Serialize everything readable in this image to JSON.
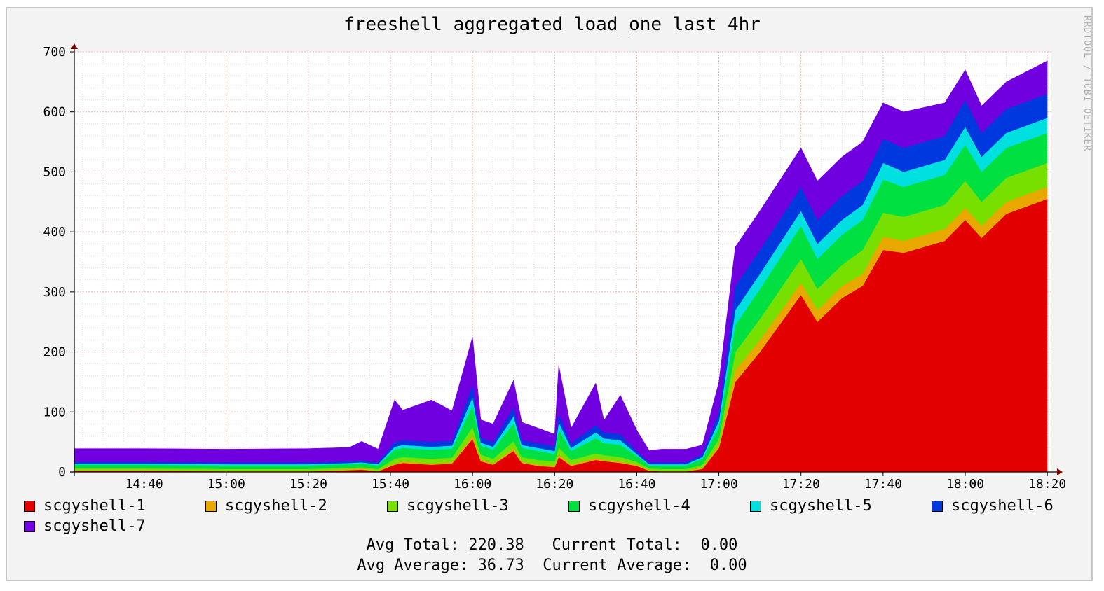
{
  "watermark": "RRDTOOL / TOBI OETIKER",
  "chart_data": {
    "type": "area",
    "stacked": true,
    "title": "freeshell aggregated load_one last 4hr",
    "xlabel": "",
    "ylabel": "",
    "ylim": [
      0,
      700
    ],
    "yticks": [
      "0",
      "100",
      "200",
      "300",
      "400",
      "500",
      "600",
      "700"
    ],
    "xlim": [
      "14:23",
      "18:21"
    ],
    "xticks": [
      "14:40",
      "15:00",
      "15:20",
      "15:40",
      "16:00",
      "16:20",
      "16:40",
      "17:00",
      "17:20",
      "17:40",
      "18:00",
      "18:20"
    ],
    "grid": true,
    "legend_position": "bottom",
    "x": [
      "14:23",
      "14:40",
      "15:00",
      "15:20",
      "15:30",
      "15:33",
      "15:37",
      "15:41",
      "15:43",
      "15:50",
      "15:55",
      "16:00",
      "16:02",
      "16:05",
      "16:10",
      "16:12",
      "16:16",
      "16:20",
      "16:21",
      "16:24",
      "16:30",
      "16:32",
      "16:36",
      "16:40",
      "16:43",
      "16:46",
      "16:52",
      "16:56",
      "17:00",
      "17:04",
      "17:10",
      "17:20",
      "17:24",
      "17:30",
      "17:35",
      "17:40",
      "17:45",
      "17:55",
      "18:00",
      "18:04",
      "18:10",
      "18:20"
    ],
    "series": [
      {
        "name": "scgyshell-1",
        "color": "#e30000",
        "values": [
          2,
          2,
          1,
          1,
          3,
          4,
          1,
          12,
          15,
          12,
          14,
          55,
          18,
          12,
          35,
          15,
          10,
          8,
          25,
          10,
          20,
          18,
          15,
          10,
          2,
          1,
          1,
          5,
          40,
          150,
          200,
          295,
          250,
          290,
          310,
          370,
          365,
          385,
          420,
          390,
          430,
          455
        ]
      },
      {
        "name": "scgyshell-2",
        "color": "#e8a800",
        "values": [
          1,
          1,
          1,
          1,
          1,
          1,
          1,
          2,
          2,
          2,
          2,
          5,
          3,
          2,
          4,
          2,
          2,
          2,
          4,
          2,
          3,
          2,
          2,
          2,
          1,
          1,
          1,
          2,
          5,
          20,
          20,
          20,
          20,
          20,
          20,
          22,
          20,
          20,
          20,
          20,
          20,
          20
        ]
      },
      {
        "name": "scgyshell-3",
        "color": "#78e000",
        "values": [
          3,
          3,
          3,
          3,
          3,
          3,
          3,
          8,
          8,
          8,
          8,
          15,
          8,
          8,
          12,
          8,
          8,
          8,
          12,
          8,
          8,
          8,
          8,
          5,
          3,
          3,
          3,
          5,
          10,
          30,
          35,
          40,
          35,
          35,
          40,
          40,
          40,
          40,
          45,
          40,
          40,
          40
        ]
      },
      {
        "name": "scgyshell-4",
        "color": "#00e040",
        "values": [
          6,
          6,
          6,
          6,
          6,
          6,
          6,
          15,
          15,
          15,
          15,
          35,
          15,
          15,
          30,
          15,
          15,
          12,
          30,
          15,
          25,
          20,
          20,
          10,
          5,
          6,
          6,
          10,
          20,
          45,
          50,
          55,
          50,
          50,
          50,
          55,
          50,
          50,
          60,
          50,
          50,
          50
        ]
      },
      {
        "name": "scgyshell-5",
        "color": "#00e0e0",
        "values": [
          2,
          2,
          2,
          2,
          2,
          2,
          2,
          5,
          5,
          5,
          5,
          15,
          5,
          5,
          12,
          5,
          5,
          5,
          12,
          5,
          10,
          8,
          8,
          3,
          2,
          2,
          2,
          3,
          10,
          25,
          25,
          25,
          25,
          25,
          25,
          28,
          25,
          25,
          30,
          25,
          25,
          25
        ]
      },
      {
        "name": "scgyshell-6",
        "color": "#0038e0",
        "values": [
          3,
          3,
          3,
          3,
          3,
          3,
          3,
          8,
          8,
          8,
          8,
          20,
          8,
          8,
          15,
          8,
          8,
          8,
          15,
          8,
          12,
          10,
          10,
          5,
          3,
          3,
          3,
          5,
          15,
          40,
          40,
          40,
          40,
          40,
          40,
          40,
          40,
          40,
          45,
          40,
          40,
          40
        ]
      },
      {
        "name": "scgyshell-7",
        "color": "#7000e0",
        "values": [
          22,
          22,
          22,
          23,
          23,
          32,
          22,
          70,
          50,
          70,
          50,
          80,
          30,
          30,
          45,
          30,
          25,
          20,
          80,
          25,
          70,
          20,
          65,
          35,
          20,
          22,
          22,
          15,
          50,
          65,
          65,
          65,
          65,
          65,
          65,
          60,
          60,
          55,
          50,
          45,
          45,
          55
        ]
      }
    ]
  },
  "stats": {
    "avg_total_label": "Avg Total:",
    "avg_total_value": "220.38",
    "current_total_label": "Current Total:",
    "current_total_value": "0.00",
    "avg_average_label": "Avg Average:",
    "avg_average_value": "36.73",
    "current_average_label": "Current Average:",
    "current_average_value": "0.00"
  }
}
